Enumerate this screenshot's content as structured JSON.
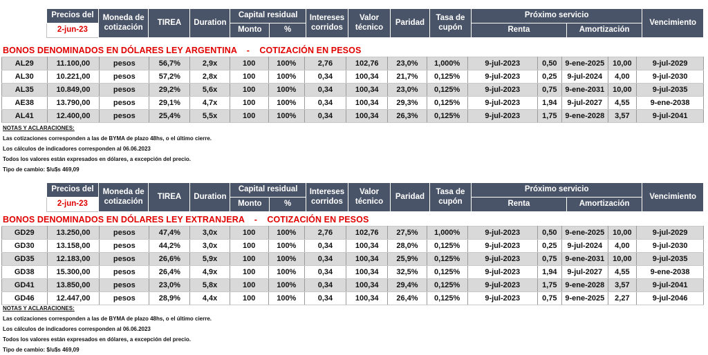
{
  "header": {
    "precios_del": "Precios del",
    "date": "2-jun-23",
    "moneda": [
      "Moneda de",
      "cotización"
    ],
    "tirea": "TIREA",
    "duration": "Duration",
    "capital_residual": "Capital residual",
    "monto": "Monto",
    "pct": "%",
    "intereses": [
      "Intereses",
      "corridos"
    ],
    "valor": [
      "Valor",
      "técnico"
    ],
    "paridad": "Paridad",
    "tasa": [
      "Tasa de",
      "cupón"
    ],
    "proximo": "Próximo servicio",
    "renta": "Renta",
    "amortizacion": "Amortización",
    "vencimiento": "Vencimiento"
  },
  "section1": {
    "title": "BONOS DENOMINADOS EN DÓLARES LEY ARGENTINA    -    COTIZACIÓN EN PESOS",
    "rows": [
      [
        "AL29",
        "11.100,00",
        "pesos",
        "56,7%",
        "2,9x",
        "100",
        "100%",
        "2,76",
        "102,76",
        "23,0%",
        "1,000%",
        "9-jul-2023",
        "0,50",
        "9-ene-2025",
        "10,00",
        "9-jul-2029"
      ],
      [
        "AL30",
        "10.221,00",
        "pesos",
        "57,2%",
        "2,8x",
        "100",
        "100%",
        "0,34",
        "100,34",
        "21,7%",
        "0,125%",
        "9-jul-2023",
        "0,25",
        "9-jul-2024",
        "4,00",
        "9-jul-2030"
      ],
      [
        "AL35",
        "10.849,00",
        "pesos",
        "29,2%",
        "5,6x",
        "100",
        "100%",
        "0,34",
        "100,34",
        "23,0%",
        "0,125%",
        "9-jul-2023",
        "0,75",
        "9-ene-2031",
        "10,00",
        "9-jul-2035"
      ],
      [
        "AE38",
        "13.790,00",
        "pesos",
        "29,1%",
        "4,7x",
        "100",
        "100%",
        "0,34",
        "100,34",
        "29,3%",
        "0,125%",
        "9-jul-2023",
        "1,94",
        "9-jul-2027",
        "4,55",
        "9-ene-2038"
      ],
      [
        "AL41",
        "12.400,00",
        "pesos",
        "25,4%",
        "5,5x",
        "100",
        "100%",
        "0,34",
        "100,34",
        "26,3%",
        "0,125%",
        "9-jul-2023",
        "1,75",
        "9-ene-2028",
        "3,57",
        "9-jul-2041"
      ]
    ],
    "notes": [
      "NOTAS Y ACLARACIONES:",
      "Las cotizaciones corresponden a las de BYMA de plazo 48hs, o el último cierre.",
      "Los cálculos de indicadores corresponden al 06.06.2023",
      "Todos los valores están expresados en dólares, a excepción del precio.",
      "Tipo de cambio:  $/u$s 469,09"
    ]
  },
  "section2": {
    "title": "BONOS DENOMINADOS EN DÓLARES LEY EXTRANJERA    -    COTIZACIÓN EN PESOS",
    "rows": [
      [
        "GD29",
        "13.250,00",
        "pesos",
        "47,4%",
        "3,0x",
        "100",
        "100%",
        "2,76",
        "102,76",
        "27,5%",
        "1,000%",
        "9-jul-2023",
        "0,50",
        "9-ene-2025",
        "10,00",
        "9-jul-2029"
      ],
      [
        "GD30",
        "13.158,00",
        "pesos",
        "44,2%",
        "3,0x",
        "100",
        "100%",
        "0,34",
        "100,34",
        "28,0%",
        "0,125%",
        "9-jul-2023",
        "0,25",
        "9-jul-2024",
        "4,00",
        "9-jul-2030"
      ],
      [
        "GD35",
        "12.183,00",
        "pesos",
        "26,6%",
        "5,9x",
        "100",
        "100%",
        "0,34",
        "100,34",
        "25,9%",
        "0,125%",
        "9-jul-2023",
        "0,75",
        "9-ene-2031",
        "10,00",
        "9-jul-2035"
      ],
      [
        "GD38",
        "15.300,00",
        "pesos",
        "26,4%",
        "4,9x",
        "100",
        "100%",
        "0,34",
        "100,34",
        "32,5%",
        "0,125%",
        "9-jul-2023",
        "1,94",
        "9-jul-2027",
        "4,55",
        "9-ene-2038"
      ],
      [
        "GD41",
        "13.850,00",
        "pesos",
        "23,0%",
        "5,8x",
        "100",
        "100%",
        "0,34",
        "100,34",
        "29,4%",
        "0,125%",
        "9-jul-2023",
        "1,75",
        "9-ene-2028",
        "3,57",
        "9-jul-2041"
      ],
      [
        "GD46",
        "12.447,00",
        "pesos",
        "28,9%",
        "4,4x",
        "100",
        "100%",
        "0,34",
        "100,34",
        "26,4%",
        "0,125%",
        "9-jul-2023",
        "0,75",
        "9-ene-2025",
        "2,27",
        "9-jul-2046"
      ]
    ],
    "notes": [
      "NOTAS Y ACLARACIONES:",
      "Las cotizaciones corresponden a las de BYMA de plazo 48hs, o el último cierre.",
      "Los cálculos de indicadores corresponden al 06.06.2023",
      "Todos los valores están expresados en dólares, a excepción del precio.",
      "Tipo de cambio:  $/u$s 469,09"
    ]
  }
}
